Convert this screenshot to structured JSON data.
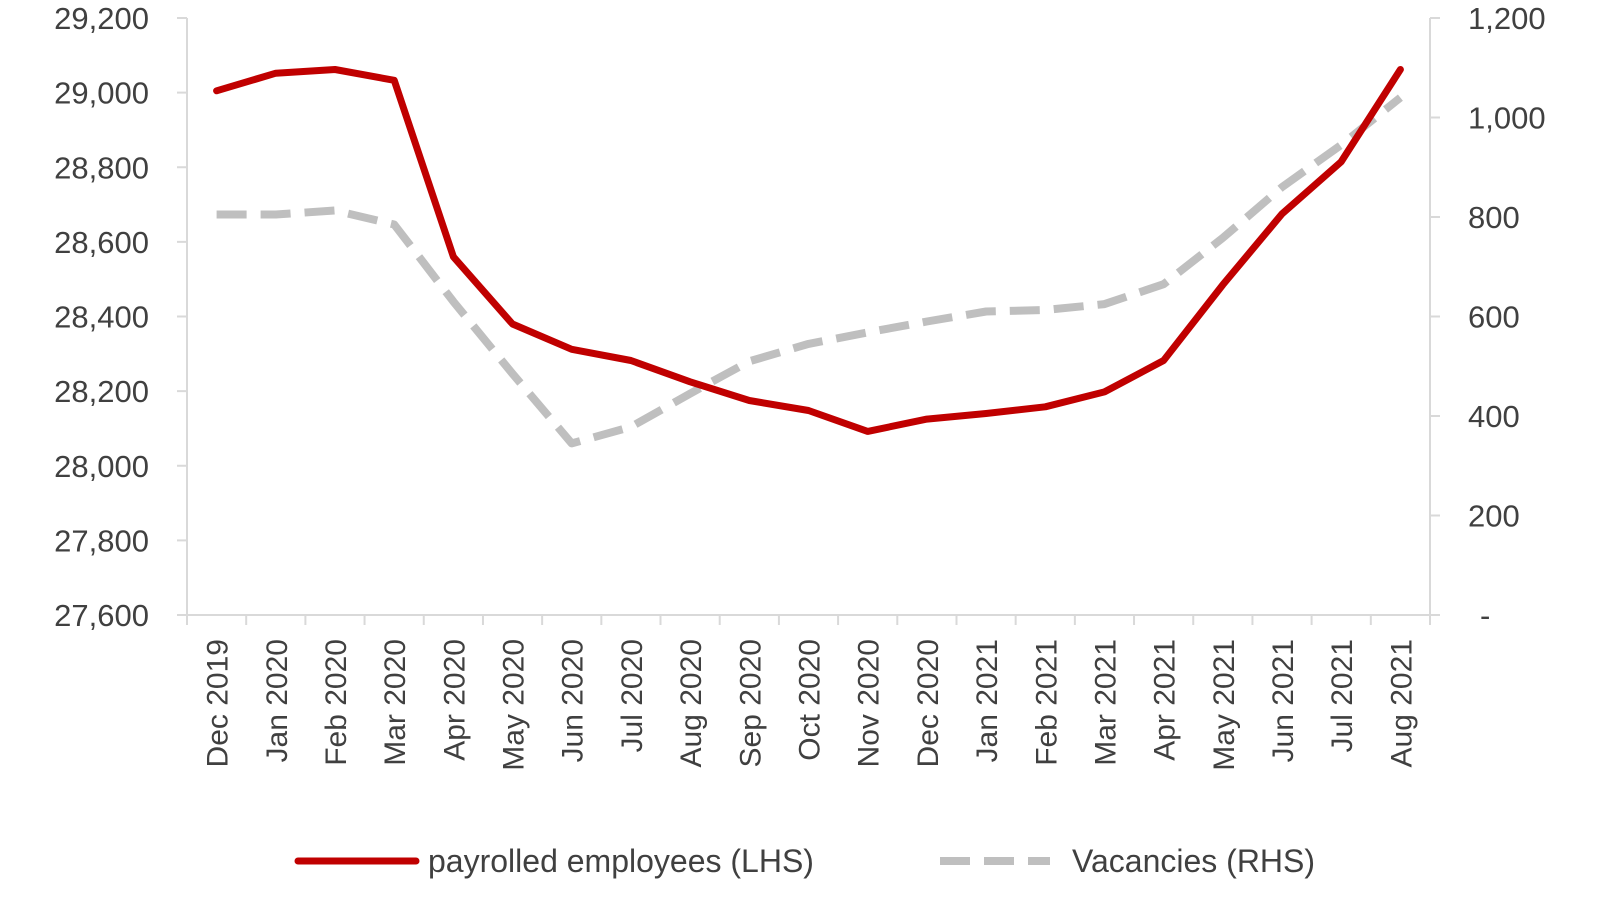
{
  "chart_data": {
    "type": "line",
    "title": "",
    "categories": [
      "Dec 2019",
      "Jan 2020",
      "Feb 2020",
      "Mar 2020",
      "Apr 2020",
      "May 2020",
      "Jun 2020",
      "Jul 2020",
      "Aug 2020",
      "Sep 2020",
      "Oct 2020",
      "Nov 2020",
      "Dec 2020",
      "Jan 2021",
      "Feb 2021",
      "Mar 2021",
      "Apr 2021",
      "May 2021",
      "Jun 2021",
      "Jul 2021",
      "Aug 2021"
    ],
    "series": [
      {
        "name": "payrolled employees (LHS)",
        "axis": "left",
        "color": "#C00000",
        "style": "solid",
        "values": [
          29005,
          29052,
          29062,
          29033,
          28560,
          28380,
          28312,
          28282,
          28225,
          28175,
          28148,
          28092,
          28125,
          28140,
          28158,
          28198,
          28282,
          28485,
          28675,
          28815,
          29062
        ]
      },
      {
        "name": "Vacancies (RHS)",
        "axis": "right",
        "color": "#BFBFBF",
        "style": "dashed",
        "values": [
          805,
          805,
          813,
          785,
          630,
          485,
          345,
          378,
          445,
          510,
          545,
          568,
          590,
          610,
          613,
          625,
          665,
          758,
          860,
          945,
          1040
        ]
      }
    ],
    "y_left": {
      "min": 27600,
      "max": 29200,
      "ticks": [
        27600,
        27800,
        28000,
        28200,
        28400,
        28600,
        28800,
        29000,
        29200
      ],
      "tick_labels": [
        "27,600",
        "27,800",
        "28,000",
        "28,200",
        "28,400",
        "28,600",
        "28,800",
        "29,000",
        "29,200"
      ]
    },
    "y_right": {
      "min": 0,
      "max": 1200,
      "ticks": [
        0,
        200,
        400,
        600,
        800,
        1000,
        1200
      ],
      "tick_labels": [
        "-",
        "200",
        "400",
        "600",
        "800",
        "1,000",
        "1,200"
      ]
    },
    "grid": false,
    "legend": {
      "position": "bottom"
    }
  }
}
